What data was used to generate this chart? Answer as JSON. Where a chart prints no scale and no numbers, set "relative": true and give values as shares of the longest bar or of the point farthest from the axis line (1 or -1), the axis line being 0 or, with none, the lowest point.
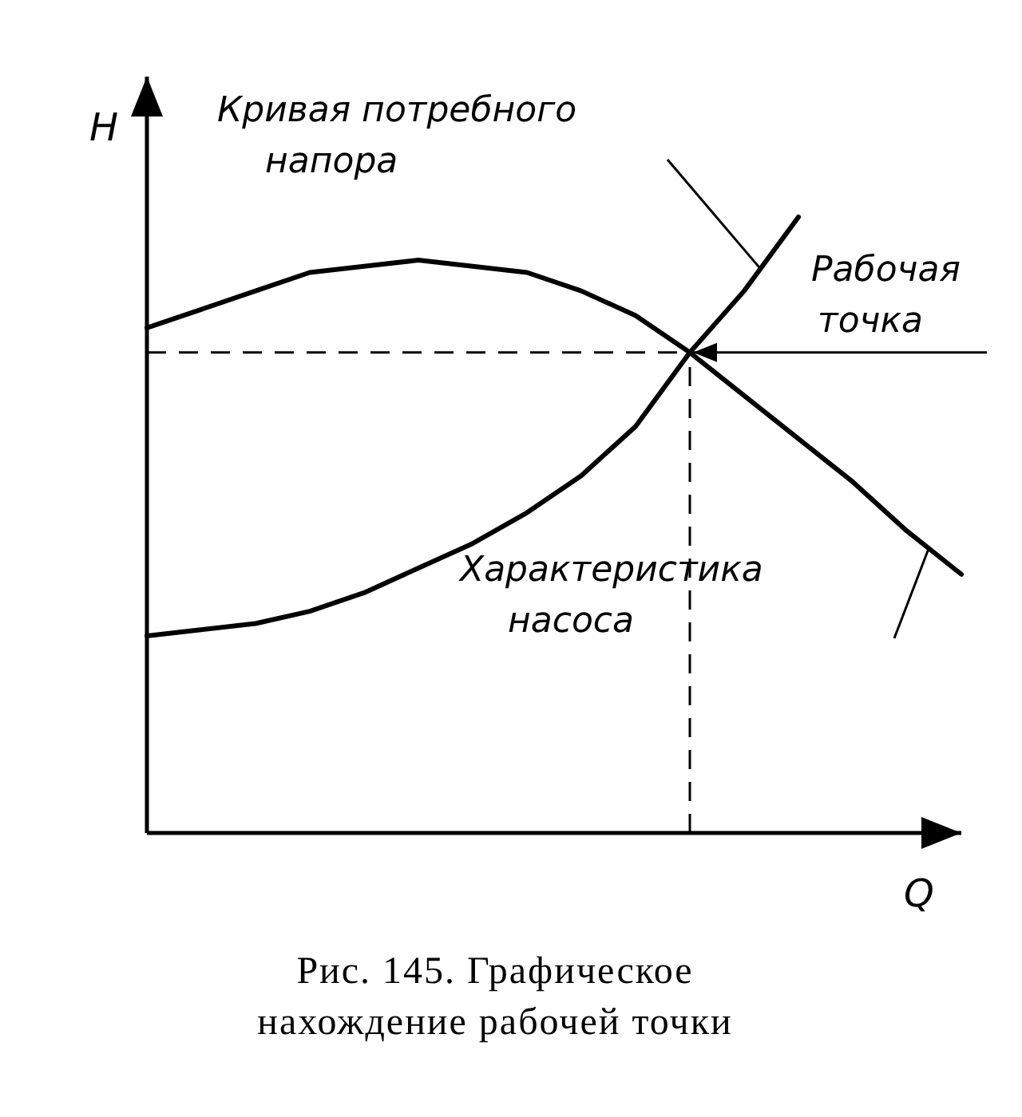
{
  "chart_data": {
    "type": "line",
    "relative": true,
    "xlabel": "Q",
    "ylabel": "H",
    "categories": [
      null,
      null,
      null,
      null,
      null,
      null,
      null,
      null,
      null,
      null,
      null,
      null,
      null,
      null,
      null,
      null
    ],
    "line_style": "solid",
    "series": [
      {
        "color": "#000000",
        "values": [
          0.82,
          0.85,
          0.88,
          0.91,
          0.92,
          0.93,
          0.92,
          0.91,
          0.88,
          0.84,
          0.78,
          0.71,
          0.64,
          0.57,
          0.49,
          0.42
        ]
      },
      {
        "color": "#000000",
        "values": [
          0.32,
          0.33,
          0.34,
          0.36,
          0.39,
          0.43,
          0.47,
          0.52,
          0.58,
          0.66,
          0.78,
          0.88,
          1.0,
          null,
          null,
          null
        ]
      }
    ],
    "ref_lines": [
      {
        "axis": "y",
        "value": 0.78,
        "line_style": "dashed"
      }
    ],
    "annotations": [
      "Кривая потребного напора",
      "Рабочая точка",
      "Характеристика насоса",
      "Рис. 145. Графическое нахождение рабочей точки"
    ]
  }
}
